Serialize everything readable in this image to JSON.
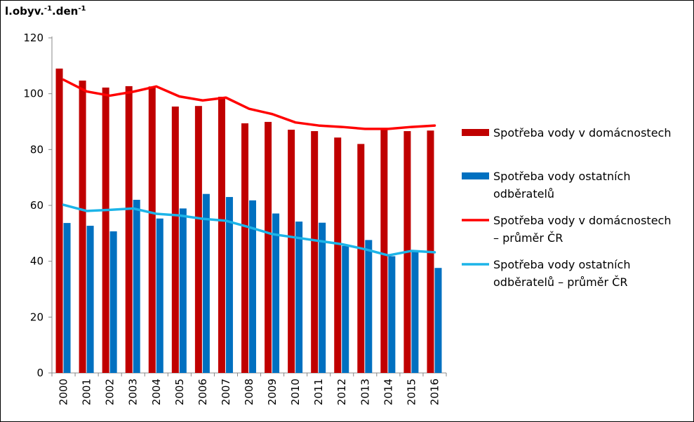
{
  "chart_data": {
    "type": "bar",
    "ylabel": {
      "base1": "l.obyv.",
      "exp1": "-1",
      "mid": ".den",
      "exp2": "-1"
    },
    "ylim": [
      0,
      120
    ],
    "yticks": [
      0,
      20,
      40,
      60,
      80,
      100,
      120
    ],
    "categories": [
      "2000",
      "2001",
      "2002",
      "2003",
      "2004",
      "2005",
      "2006",
      "2007",
      "2008",
      "2009",
      "2010",
      "2011",
      "2012",
      "2013",
      "2014",
      "2015",
      "2016"
    ],
    "series": [
      {
        "name": "Spotřeba vody v domácnostech",
        "kind": "bar",
        "color": "#C00000",
        "values": [
          109,
          104.7,
          102.2,
          102.7,
          102.6,
          95.4,
          95.6,
          98.9,
          89.4,
          89.9,
          87.1,
          86.6,
          84.3,
          82,
          87.7,
          86.6,
          86.8
        ]
      },
      {
        "name": "Spotřeba vody ostatních odběratelů",
        "kind": "bar",
        "color": "#0070C0",
        "values": [
          53.7,
          52.7,
          50.7,
          62,
          55.3,
          58.9,
          64.1,
          63,
          61.8,
          57.1,
          54.2,
          53.8,
          45.5,
          47.6,
          41.8,
          43.3,
          37.6
        ]
      },
      {
        "name": "Spotřeba vody v domácnostech – průměr ČR",
        "kind": "line",
        "color": "#FF0000",
        "values": [
          105,
          100.8,
          99.3,
          100.7,
          102.6,
          99,
          97.6,
          98.6,
          94.6,
          92.7,
          89.7,
          88.6,
          88.1,
          87.4,
          87.4,
          88.1,
          88.6
        ]
      },
      {
        "name": "Spotřeba vody ostatních odběratelů – průměr ČR",
        "kind": "line",
        "color": "#1CB4E8",
        "values": [
          60.2,
          58,
          58.4,
          58.9,
          57,
          56.4,
          55.2,
          54.5,
          52.2,
          49.7,
          48.5,
          47.3,
          46.1,
          44.3,
          42.1,
          43.7,
          43.2
        ]
      }
    ],
    "legend": [
      {
        "lines": [
          "Spotřeba vody v domácnostech"
        ],
        "kind": "bar",
        "color": "#C00000"
      },
      {
        "lines": [
          "Spotřeba vody ostatních",
          "odběratelů"
        ],
        "kind": "bar",
        "color": "#0070C0"
      },
      {
        "lines": [
          "Spotřeba vody v domácnostech",
          "– průměr ČR"
        ],
        "kind": "line",
        "color": "#FF0000"
      },
      {
        "lines": [
          "Spotřeba vody ostatních",
          "odběratelů – průměr ČR"
        ],
        "kind": "line",
        "color": "#1CB4E8"
      }
    ],
    "legend_position": "right",
    "grid": false
  }
}
